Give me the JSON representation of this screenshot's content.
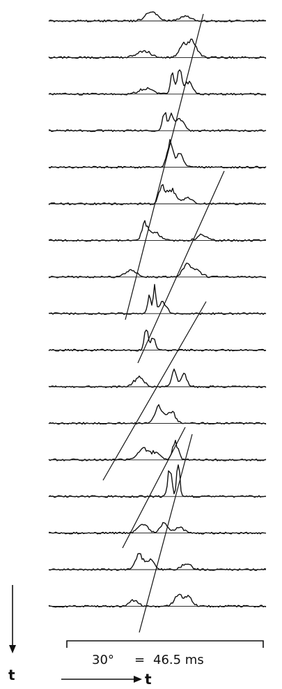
{
  "scale_bar": {
    "angle": "30°",
    "equals": "=",
    "duration": "46.5 ms"
  },
  "axes": {
    "vertical_label": "t",
    "horizontal_label": "t"
  },
  "colors": {
    "ink": "#111111",
    "paper": "#ffffff"
  }
}
